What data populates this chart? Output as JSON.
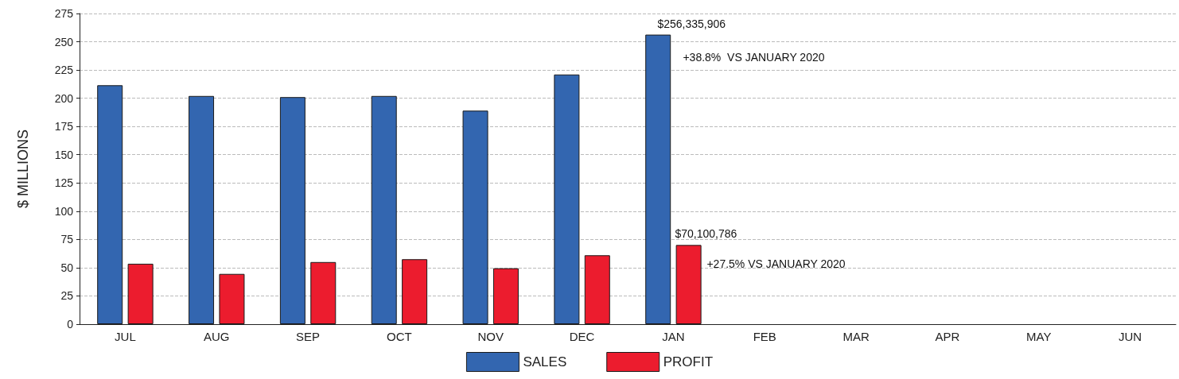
{
  "chart_data": {
    "type": "bar",
    "ylabel": "$ MILLIONS",
    "categories": [
      "JUL",
      "AUG",
      "SEP",
      "OCT",
      "NOV",
      "DEC",
      "JAN",
      "FEB",
      "MAR",
      "APR",
      "MAY",
      "JUN"
    ],
    "series": [
      {
        "name": "SALES",
        "color": "#3366b0",
        "values": [
          211.5,
          202,
          201,
          202,
          189,
          221,
          256.3,
          null,
          null,
          null,
          null,
          null
        ]
      },
      {
        "name": "PROFIT",
        "color": "#ec1c2e",
        "values": [
          53.5,
          44.5,
          55,
          57.5,
          49.5,
          61,
          70.1,
          null,
          null,
          null,
          null,
          null
        ]
      }
    ],
    "annotations": [
      {
        "text": "$256,335,906",
        "x": "JAN",
        "y": 256.3
      },
      "+38.8%  VS JANUARY 2020",
      {
        "text": "$70,100,786",
        "x": "JAN",
        "y": 70.1
      },
      "+27.5% VS JANUARY 2020"
    ],
    "ylim": [
      0,
      275
    ],
    "yticks": [
      0,
      25,
      50,
      75,
      100,
      125,
      150,
      175,
      200,
      225,
      250,
      275
    ],
    "grid": "y",
    "legend": "bottom"
  }
}
